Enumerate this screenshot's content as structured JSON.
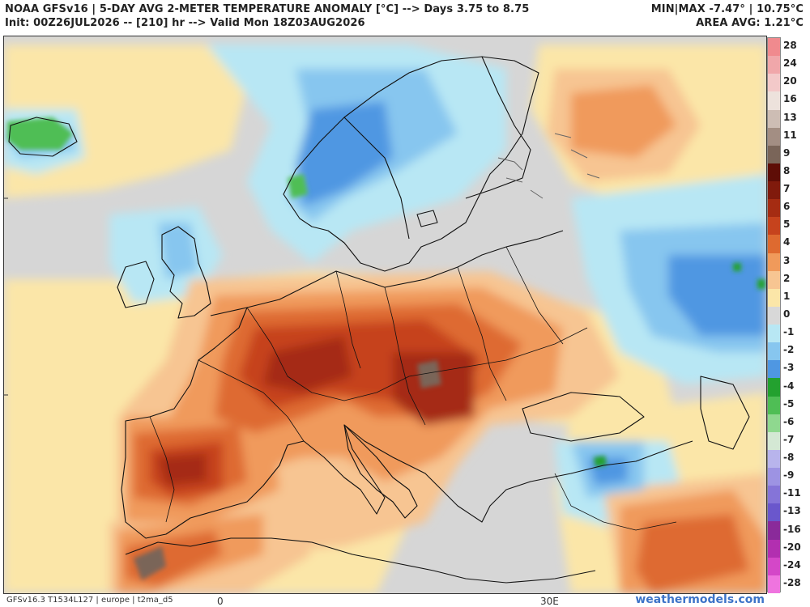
{
  "header": {
    "title": "NOAA GFSv16 | 5-DAY AVG 2-METER TEMPERATURE ANOMALY [°C] --> Days 3.75 to 8.75",
    "init": "Init: 00Z26JUL2026 -- [210] hr --> Valid Mon 18Z03AUG2026",
    "minmax": "MIN|MAX -7.47° | 10.75°C",
    "area_avg": "AREA AVG: 1.21°C"
  },
  "colorbar": {
    "levels": [
      "28",
      "24",
      "20",
      "16",
      "13",
      "11",
      "9",
      "8",
      "7",
      "6",
      "5",
      "4",
      "3",
      "2",
      "1",
      "0",
      "-1",
      "-2",
      "-3",
      "-4",
      "-5",
      "-6",
      "-7",
      "-8",
      "-9",
      "-11",
      "-13",
      "-16",
      "-20",
      "-24",
      "-28"
    ],
    "colors": [
      "#f08a8e",
      "#f0a7aa",
      "#f3c9c9",
      "#ede2dc",
      "#cdbdb4",
      "#a38e83",
      "#7a6559",
      "#5e0d06",
      "#801a0c",
      "#a52c12",
      "#c6431d",
      "#de6a30",
      "#f09a5b",
      "#f7c592",
      "#fbe6a8",
      "#d8d8d8",
      "#b8e7f4",
      "#87c6ef",
      "#4f97e2",
      "#23a12f",
      "#4fbe55",
      "#8fd88f",
      "#d4e8d4",
      "#b8b4ec",
      "#9d93e3",
      "#8574d8",
      "#6a57cc",
      "#8a2a9a",
      "#b22fb0",
      "#d447c8",
      "#ef74df"
    ]
  },
  "footer": {
    "model_info": "GFSv16.3 T1534L127 | europe | t2ma_d5",
    "lon_0": "0",
    "lon_30": "30E",
    "brand": "weathermodels.com"
  }
}
